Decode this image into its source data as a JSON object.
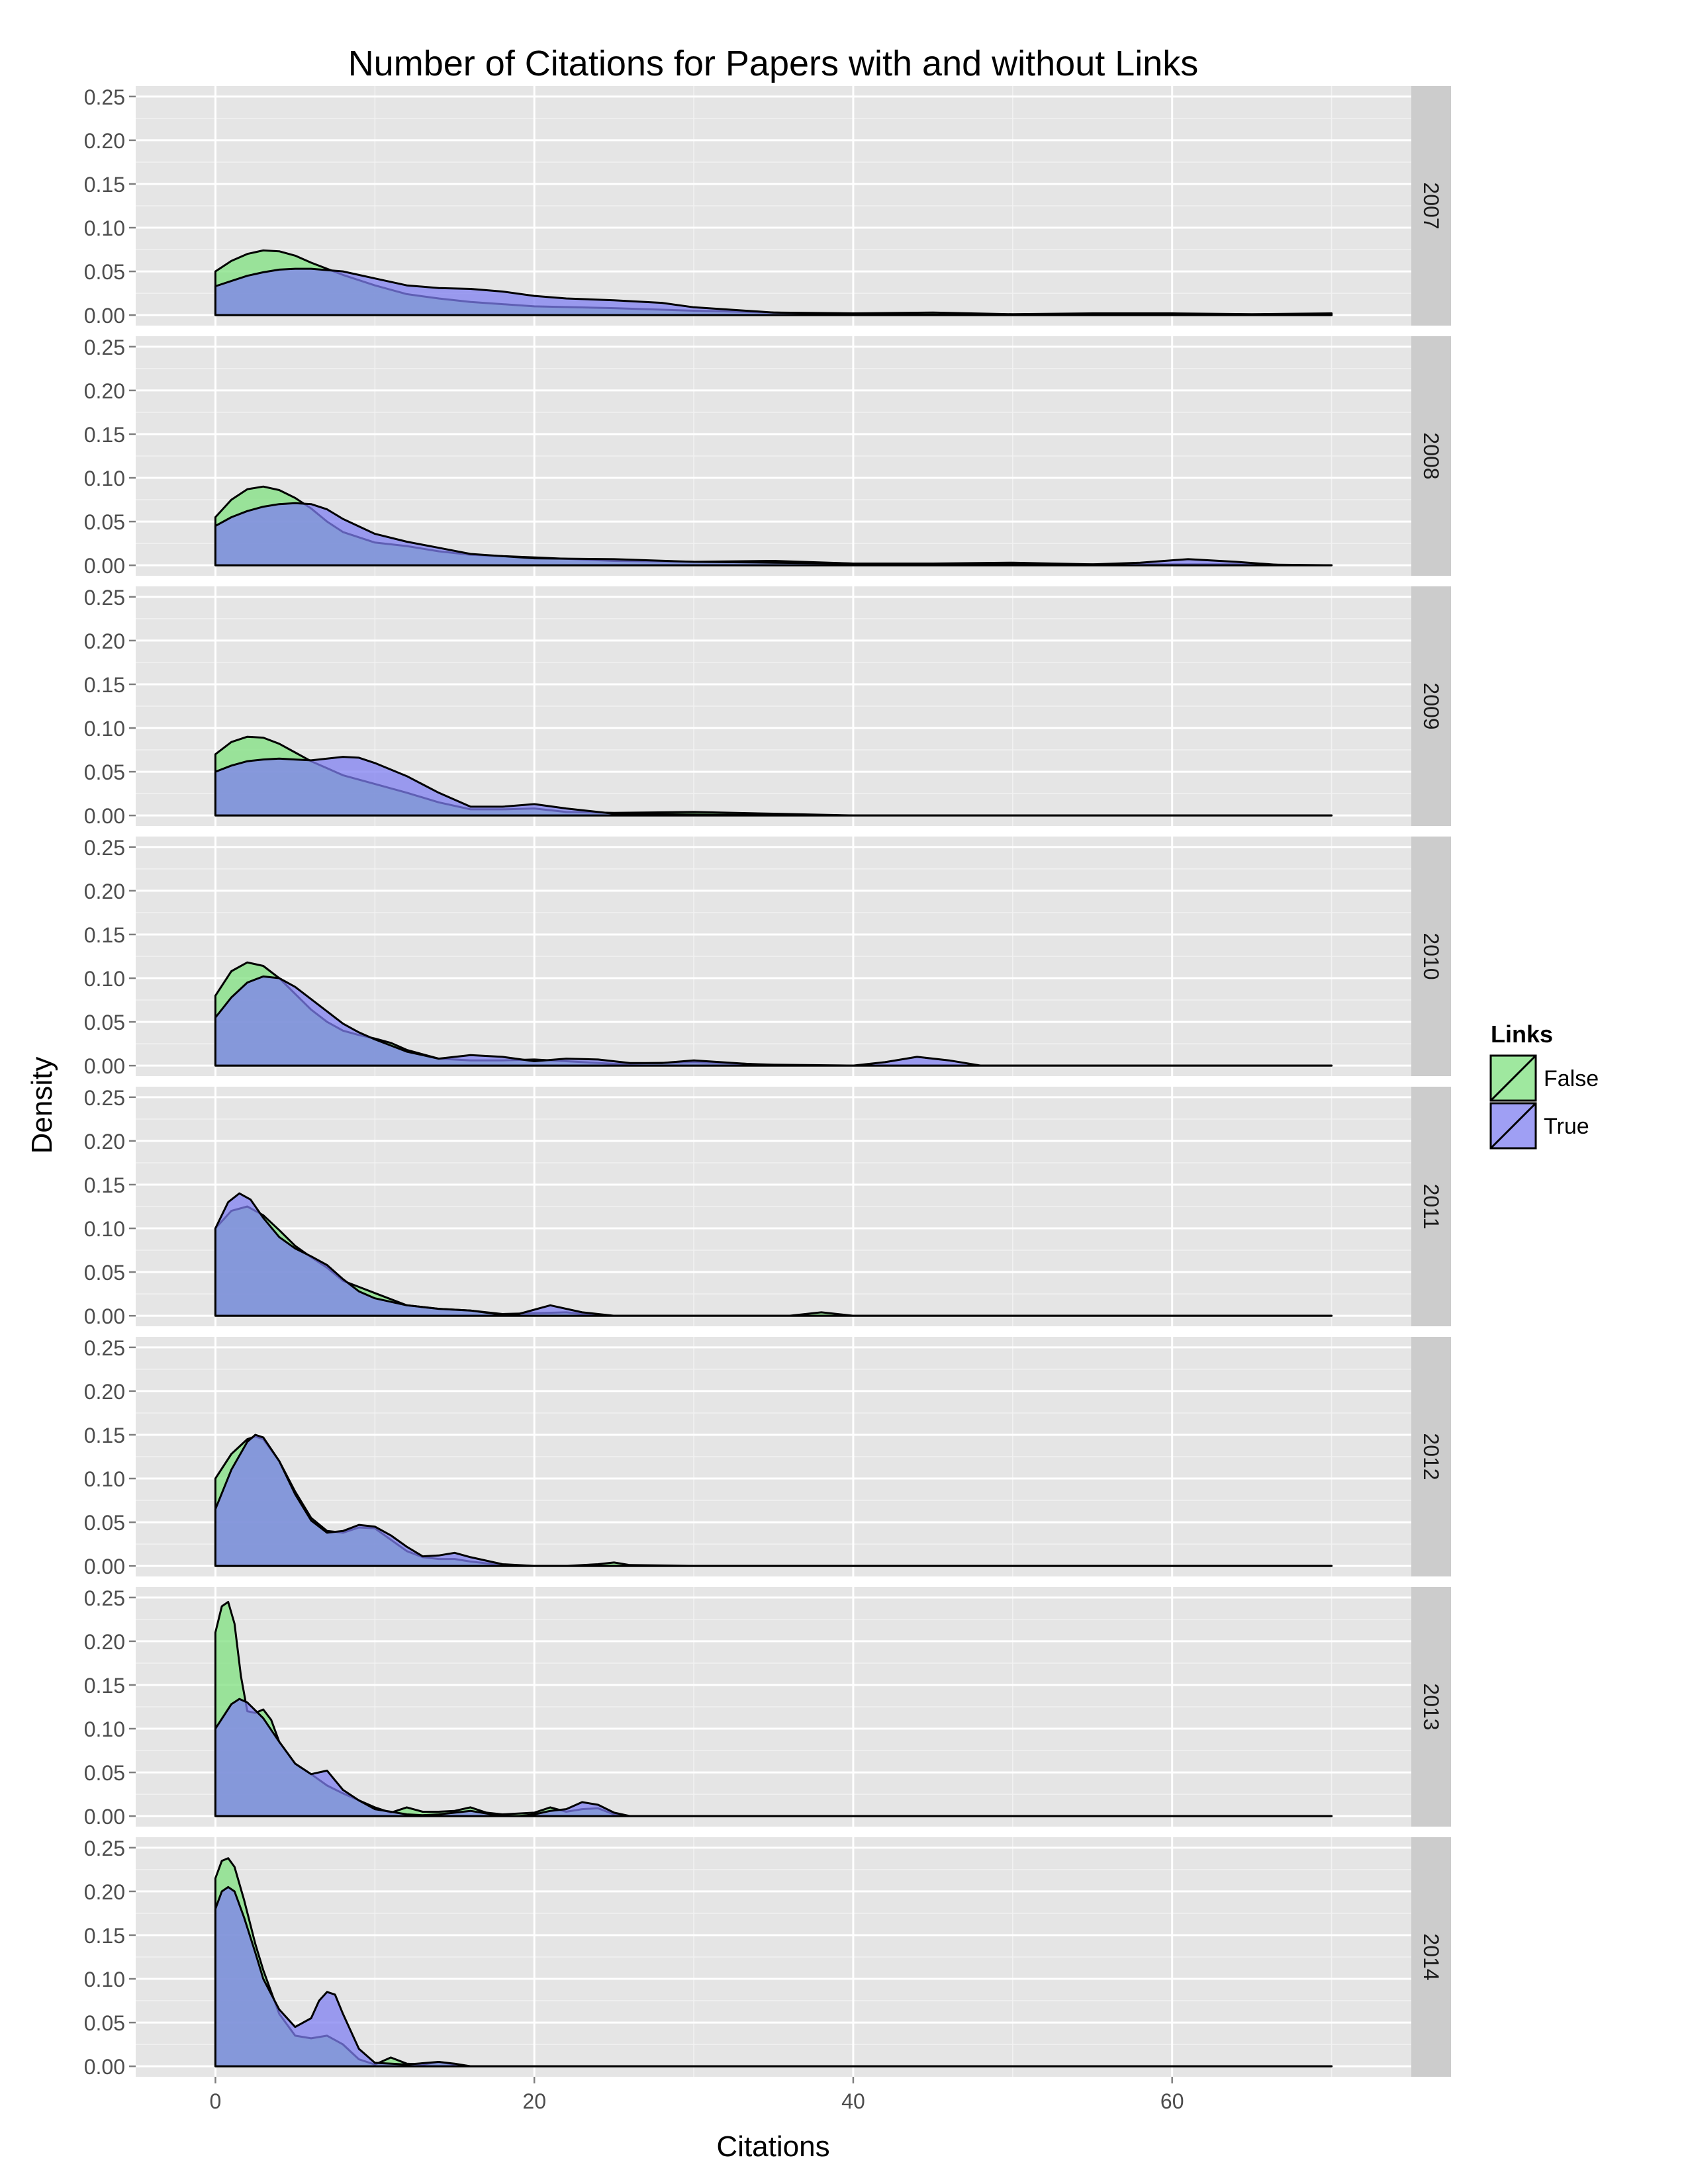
{
  "chart_data": {
    "type": "area",
    "title": "Number of Citations for Papers with and without Links",
    "xlabel": "Citations",
    "ylabel": "Density",
    "xlim": [
      -5,
      75
    ],
    "ylim": [
      -0.012,
      0.262
    ],
    "x_ticks": [
      0,
      20,
      40,
      60
    ],
    "y_ticks": [
      0.0,
      0.05,
      0.1,
      0.15,
      0.2,
      0.25
    ],
    "y_tick_labels": [
      "0.00",
      "0.05",
      "0.10",
      "0.15",
      "0.20",
      "0.25"
    ],
    "grid": true,
    "legend": {
      "title": "Links",
      "placement": "right",
      "entries": [
        "False",
        "True"
      ]
    },
    "colors": {
      "False": "#7fe07f",
      "True": "#7f7ff0",
      "panel_bg": "#e5e5e5",
      "strip_bg": "#cccccc"
    },
    "panels": [
      {
        "label": "2007",
        "series": [
          {
            "name": "False",
            "x": [
              0,
              1,
              2,
              3,
              4,
              5,
              6,
              8,
              10,
              12,
              14,
              16,
              20,
              25,
              30,
              35,
              40,
              45,
              50,
              55,
              60,
              65,
              70
            ],
            "y": [
              0.05,
              0.062,
              0.07,
              0.074,
              0.073,
              0.068,
              0.06,
              0.046,
              0.034,
              0.024,
              0.019,
              0.015,
              0.01,
              0.008,
              0.005,
              0.003,
              0.002,
              0.003,
              0.001,
              0.002,
              0.002,
              0.001,
              0.002
            ]
          },
          {
            "name": "True",
            "x": [
              0,
              1,
              2,
              3,
              4,
              5,
              6,
              8,
              10,
              12,
              14,
              16,
              18,
              20,
              22,
              25,
              28,
              30,
              35,
              40,
              50,
              60,
              70
            ],
            "y": [
              0.033,
              0.039,
              0.045,
              0.049,
              0.052,
              0.053,
              0.053,
              0.05,
              0.042,
              0.034,
              0.031,
              0.03,
              0.027,
              0.022,
              0.019,
              0.017,
              0.014,
              0.009,
              0.003,
              0.001,
              0.0,
              0.0,
              0.0
            ]
          }
        ]
      },
      {
        "label": "2008",
        "series": [
          {
            "name": "False",
            "x": [
              0,
              1,
              2,
              3,
              4,
              5,
              6,
              7,
              8,
              10,
              12,
              14,
              16,
              20,
              25,
              30,
              35,
              40,
              45,
              50,
              55,
              60,
              65,
              70
            ],
            "y": [
              0.055,
              0.075,
              0.087,
              0.09,
              0.086,
              0.077,
              0.065,
              0.05,
              0.038,
              0.026,
              0.022,
              0.016,
              0.012,
              0.009,
              0.005,
              0.004,
              0.005,
              0.002,
              0.002,
              0.003,
              0.001,
              0.001,
              0.001,
              0.0
            ]
          },
          {
            "name": "True",
            "x": [
              0,
              1,
              2,
              3,
              4,
              5,
              6,
              7,
              8,
              10,
              12,
              14,
              16,
              20,
              25,
              30,
              35,
              40,
              50,
              55,
              58,
              61,
              64,
              67,
              70
            ],
            "y": [
              0.045,
              0.055,
              0.062,
              0.067,
              0.07,
              0.071,
              0.07,
              0.064,
              0.053,
              0.036,
              0.027,
              0.02,
              0.013,
              0.008,
              0.007,
              0.004,
              0.003,
              0.002,
              0.001,
              0.001,
              0.003,
              0.007,
              0.004,
              0.0,
              0.0
            ]
          }
        ]
      },
      {
        "label": "2009",
        "series": [
          {
            "name": "False",
            "x": [
              0,
              1,
              2,
              3,
              4,
              5,
              6,
              7,
              8,
              10,
              12,
              14,
              16,
              18,
              20,
              22,
              25,
              30,
              35,
              40,
              50,
              60,
              70
            ],
            "y": [
              0.07,
              0.084,
              0.09,
              0.089,
              0.082,
              0.072,
              0.062,
              0.054,
              0.046,
              0.036,
              0.026,
              0.015,
              0.007,
              0.007,
              0.008,
              0.004,
              0.003,
              0.004,
              0.002,
              0.0,
              0.0,
              0.0,
              0.0
            ]
          },
          {
            "name": "True",
            "x": [
              0,
              1,
              2,
              3,
              4,
              5,
              6,
              7,
              8,
              9,
              10,
              12,
              14,
              16,
              18,
              20,
              22,
              25,
              30,
              40,
              50,
              60,
              70
            ],
            "y": [
              0.05,
              0.057,
              0.062,
              0.064,
              0.065,
              0.064,
              0.063,
              0.065,
              0.067,
              0.066,
              0.06,
              0.045,
              0.026,
              0.01,
              0.01,
              0.013,
              0.008,
              0.002,
              0.001,
              0.0,
              0.0,
              0.0,
              0.0
            ]
          }
        ]
      },
      {
        "label": "2010",
        "series": [
          {
            "name": "False",
            "x": [
              0,
              1,
              2,
              3,
              4,
              5,
              6,
              7,
              8,
              9,
              10,
              11,
              12,
              14,
              16,
              18,
              20,
              22,
              25,
              30,
              35,
              40,
              45,
              50,
              60,
              70
            ],
            "y": [
              0.08,
              0.108,
              0.118,
              0.114,
              0.1,
              0.082,
              0.064,
              0.05,
              0.04,
              0.035,
              0.031,
              0.026,
              0.018,
              0.008,
              0.006,
              0.006,
              0.007,
              0.005,
              0.002,
              0.004,
              0.001,
              0.0,
              0.0,
              0.0,
              0.0,
              0.0
            ]
          },
          {
            "name": "True",
            "x": [
              0,
              1,
              2,
              3,
              4,
              5,
              6,
              7,
              8,
              9,
              10,
              12,
              14,
              16,
              18,
              20,
              22,
              24,
              26,
              28,
              30,
              35,
              40,
              42,
              44,
              46,
              48,
              50,
              60,
              70
            ],
            "y": [
              0.055,
              0.078,
              0.095,
              0.102,
              0.1,
              0.09,
              0.076,
              0.062,
              0.048,
              0.038,
              0.03,
              0.016,
              0.008,
              0.012,
              0.01,
              0.005,
              0.008,
              0.007,
              0.003,
              0.003,
              0.006,
              0.0,
              0.0,
              0.004,
              0.01,
              0.006,
              0.0,
              0.0,
              0.0,
              0.0
            ]
          }
        ]
      },
      {
        "label": "2011",
        "series": [
          {
            "name": "False",
            "x": [
              0,
              1,
              2,
              3,
              4,
              5,
              6,
              7,
              8,
              9,
              10,
              12,
              14,
              16,
              18,
              20,
              22,
              24,
              30,
              36,
              38,
              40,
              50,
              60,
              70
            ],
            "y": [
              0.1,
              0.12,
              0.125,
              0.115,
              0.098,
              0.08,
              0.067,
              0.055,
              0.04,
              0.033,
              0.026,
              0.012,
              0.008,
              0.006,
              0.002,
              0.003,
              0.004,
              0.0,
              0.0,
              0.0,
              0.004,
              0.0,
              0.0,
              0.0,
              0.0
            ]
          },
          {
            "name": "True",
            "x": [
              0,
              0.8,
              1.5,
              2.2,
              3,
              4,
              5,
              6,
              7,
              8,
              9,
              10,
              12,
              14,
              16,
              18,
              19,
              21,
              23,
              25,
              30,
              40,
              50,
              60,
              70
            ],
            "y": [
              0.1,
              0.13,
              0.14,
              0.133,
              0.112,
              0.09,
              0.077,
              0.068,
              0.058,
              0.042,
              0.028,
              0.02,
              0.012,
              0.008,
              0.006,
              0.001,
              0.002,
              0.012,
              0.004,
              0.0,
              0.0,
              0.0,
              0.0,
              0.0,
              0.0
            ]
          }
        ]
      },
      {
        "label": "2012",
        "series": [
          {
            "name": "False",
            "x": [
              0,
              1,
              2,
              2.5,
              3,
              4,
              5,
              6,
              7,
              8,
              9,
              10,
              11,
              12,
              13,
              14,
              15,
              16,
              18,
              20,
              22,
              24,
              25,
              26,
              30,
              40,
              50,
              60,
              70
            ],
            "y": [
              0.1,
              0.128,
              0.145,
              0.148,
              0.145,
              0.12,
              0.085,
              0.055,
              0.04,
              0.038,
              0.044,
              0.043,
              0.03,
              0.017,
              0.01,
              0.008,
              0.008,
              0.005,
              0.001,
              0.0,
              0.0,
              0.002,
              0.004,
              0.001,
              0.0,
              0.0,
              0.0,
              0.0,
              0.0
            ]
          },
          {
            "name": "True",
            "x": [
              0,
              1,
              2,
              2.5,
              3,
              4,
              5,
              6,
              7,
              8,
              9,
              10,
              11,
              12,
              13,
              14,
              15,
              16,
              18,
              20,
              25,
              30,
              40,
              50,
              60,
              70
            ],
            "y": [
              0.065,
              0.11,
              0.142,
              0.15,
              0.147,
              0.12,
              0.082,
              0.052,
              0.038,
              0.04,
              0.047,
              0.045,
              0.035,
              0.022,
              0.011,
              0.012,
              0.015,
              0.01,
              0.002,
              0.0,
              0.0,
              0.0,
              0.0,
              0.0,
              0.0,
              0.0
            ]
          }
        ]
      },
      {
        "label": "2013",
        "series": [
          {
            "name": "False",
            "x": [
              0,
              0.4,
              0.8,
              1.2,
              1.6,
              2,
              2.5,
              3,
              3.5,
              4,
              5,
              6,
              7,
              8,
              9,
              10,
              11,
              12,
              13,
              14,
              15,
              16,
              17,
              18,
              20,
              21,
              22,
              23,
              24,
              25,
              26,
              30,
              40,
              50,
              60,
              70
            ],
            "y": [
              0.21,
              0.24,
              0.245,
              0.22,
              0.16,
              0.12,
              0.118,
              0.122,
              0.11,
              0.085,
              0.06,
              0.048,
              0.035,
              0.026,
              0.018,
              0.01,
              0.004,
              0.01,
              0.005,
              0.005,
              0.006,
              0.01,
              0.004,
              0.002,
              0.004,
              0.01,
              0.005,
              0.008,
              0.009,
              0.002,
              0.0,
              0.0,
              0.0,
              0.0,
              0.0,
              0.0
            ]
          },
          {
            "name": "True",
            "x": [
              0,
              1,
              1.5,
              2,
              3,
              4,
              5,
              6,
              7,
              8,
              9,
              10,
              11,
              12,
              13,
              14,
              15,
              16,
              17,
              18,
              19,
              20,
              21,
              22,
              23,
              24,
              25,
              26,
              30,
              40,
              50,
              60,
              70
            ],
            "y": [
              0.1,
              0.128,
              0.134,
              0.13,
              0.112,
              0.085,
              0.06,
              0.048,
              0.052,
              0.03,
              0.018,
              0.008,
              0.005,
              0.002,
              0.001,
              0.002,
              0.004,
              0.006,
              0.003,
              0.0,
              0.0,
              0.002,
              0.006,
              0.008,
              0.016,
              0.013,
              0.004,
              0.0,
              0.0,
              0.0,
              0.0,
              0.0,
              0.0
            ]
          }
        ]
      },
      {
        "label": "2014",
        "series": [
          {
            "name": "False",
            "x": [
              0,
              0.4,
              0.8,
              1.2,
              1.8,
              2.5,
              3,
              4,
              5,
              6,
              7,
              8,
              9,
              10,
              11,
              12,
              13,
              14,
              15,
              16,
              20,
              30,
              40,
              50,
              60,
              70
            ],
            "y": [
              0.215,
              0.235,
              0.238,
              0.228,
              0.19,
              0.14,
              0.11,
              0.06,
              0.035,
              0.032,
              0.035,
              0.025,
              0.008,
              0.002,
              0.01,
              0.003,
              0.002,
              0.005,
              0.002,
              0.0,
              0.0,
              0.0,
              0.0,
              0.0,
              0.0,
              0.0
            ]
          },
          {
            "name": "True",
            "x": [
              0,
              0.4,
              0.8,
              1.2,
              1.8,
              2.5,
              3,
              4,
              5,
              6,
              6.5,
              7,
              7.5,
              8,
              9,
              10,
              12,
              14,
              15,
              16,
              20,
              30,
              40,
              50,
              60,
              70
            ],
            "y": [
              0.18,
              0.2,
              0.205,
              0.2,
              0.17,
              0.13,
              0.1,
              0.065,
              0.045,
              0.055,
              0.075,
              0.085,
              0.082,
              0.06,
              0.02,
              0.004,
              0.002,
              0.005,
              0.003,
              0.0,
              0.0,
              0.0,
              0.0,
              0.0,
              0.0,
              0.0
            ]
          }
        ]
      }
    ]
  }
}
